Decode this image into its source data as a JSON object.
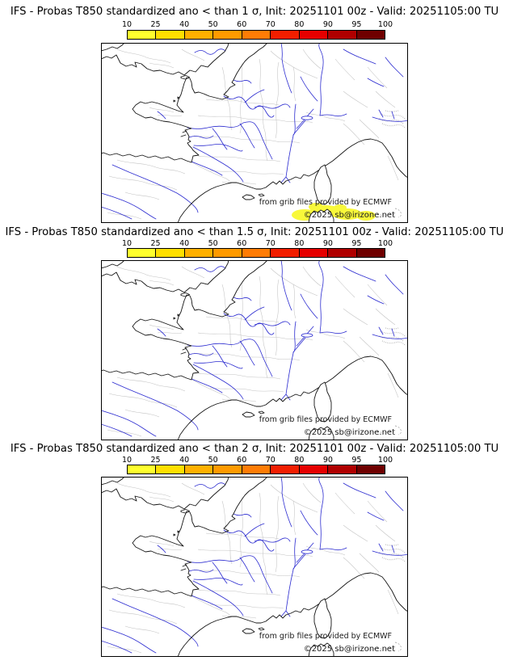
{
  "colorbar": {
    "ticks": [
      "10",
      "25",
      "40",
      "50",
      "60",
      "70",
      "80",
      "90",
      "95",
      "100"
    ],
    "segment_colors": [
      "#ffff2e",
      "#ffdf00",
      "#ffb000",
      "#ff9a00",
      "#ff7c05",
      "#f21e00",
      "#e60000",
      "#b00000",
      "#6f0000"
    ]
  },
  "anomaly_patch_color": "#f8f83a",
  "panels": [
    {
      "title": "IFS - Probas T850  standardized ano < than 1 σ, Init: 20251101 00z - Valid: 20251105:00 TU",
      "credit": "from grib files provided by ECMWF",
      "copyright": "©2025 sb@irizone.net"
    },
    {
      "title": "IFS - Probas T850  standardized ano < than 1.5 σ, Init: 20251101 00z - Valid: 20251105:00 TU",
      "credit": "from grib files provided by ECMWF",
      "copyright": "©2025 sb@irizone.net"
    },
    {
      "title": "IFS - Probas T850  standardized ano < than 2 σ, Init: 20251101 00z - Valid: 20251105:00 TU",
      "credit": "from grib files provided by ECMWF",
      "copyright": "©2025 sb@irizone.net"
    }
  ]
}
